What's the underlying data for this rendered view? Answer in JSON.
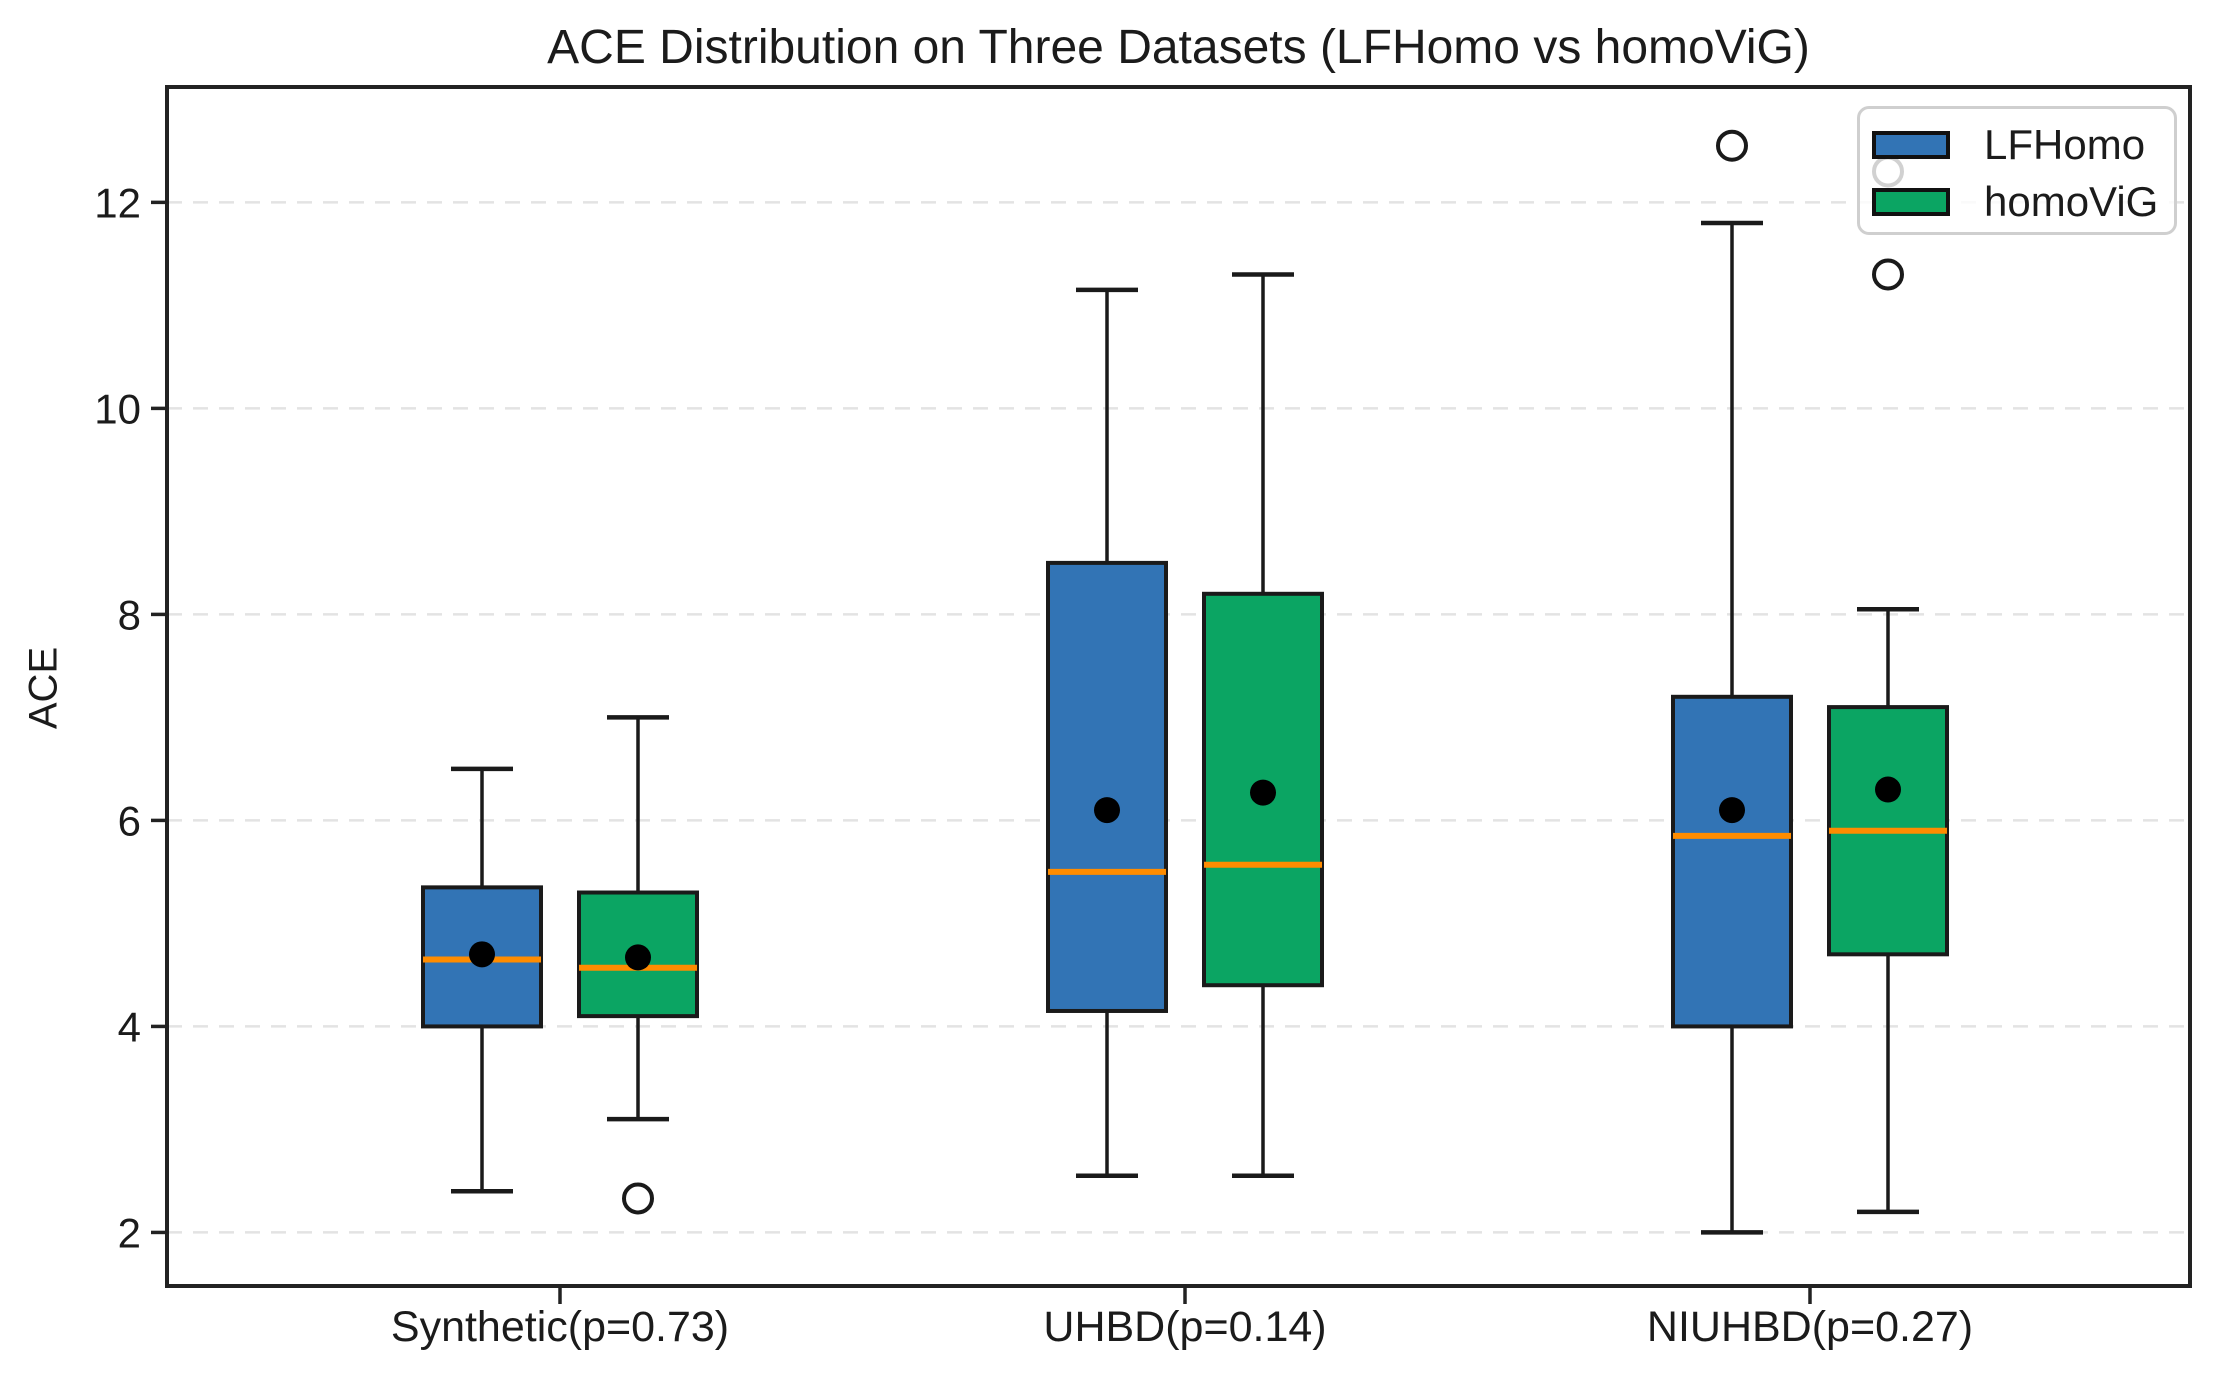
{
  "chart_data": {
    "type": "box",
    "title": "ACE Distribution on Three Datasets (LFHomo vs homoViG)",
    "ylabel": "ACE",
    "categories": [
      "Synthetic(p=0.73)",
      "UHBD(p=0.14)",
      "NIUHBD(p=0.27)"
    ],
    "yticks": [
      2,
      4,
      6,
      8,
      10,
      12
    ],
    "ylim": [
      1.48,
      13.12
    ],
    "grid": "horizontal dashed",
    "legend_position": "upper right",
    "median_color": "#ff8c00",
    "mean_marker_color": "#000000",
    "outlier_marker": "open circle",
    "series": [
      {
        "name": "LFHomo",
        "color": "#3274b5",
        "boxes": [
          {
            "category": "Synthetic(p=0.73)",
            "whisker_low": 2.4,
            "q1": 4.0,
            "median": 4.65,
            "q3": 5.35,
            "whisker_high": 6.5,
            "mean": 4.7,
            "outliers": []
          },
          {
            "category": "UHBD(p=0.14)",
            "whisker_low": 2.55,
            "q1": 4.15,
            "median": 5.5,
            "q3": 8.5,
            "whisker_high": 11.15,
            "mean": 6.1,
            "outliers": []
          },
          {
            "category": "NIUHBD(p=0.27)",
            "whisker_low": 2.0,
            "q1": 4.0,
            "median": 5.85,
            "q3": 7.2,
            "whisker_high": 11.8,
            "mean": 6.1,
            "outliers": [
              12.55
            ]
          }
        ]
      },
      {
        "name": "homoViG",
        "color": "#0ba563",
        "boxes": [
          {
            "category": "Synthetic(p=0.73)",
            "whisker_low": 3.1,
            "q1": 4.1,
            "median": 4.57,
            "q3": 5.3,
            "whisker_high": 7.0,
            "mean": 4.67,
            "outliers": [
              2.33
            ]
          },
          {
            "category": "UHBD(p=0.14)",
            "whisker_low": 2.55,
            "q1": 4.4,
            "median": 5.57,
            "q3": 8.2,
            "whisker_high": 11.3,
            "mean": 6.27,
            "outliers": []
          },
          {
            "category": "NIUHBD(p=0.27)",
            "whisker_low": 2.2,
            "q1": 4.7,
            "median": 5.9,
            "q3": 7.1,
            "whisker_high": 8.05,
            "mean": 6.3,
            "outliers": [
              11.3,
              12.3
            ]
          }
        ]
      }
    ]
  }
}
